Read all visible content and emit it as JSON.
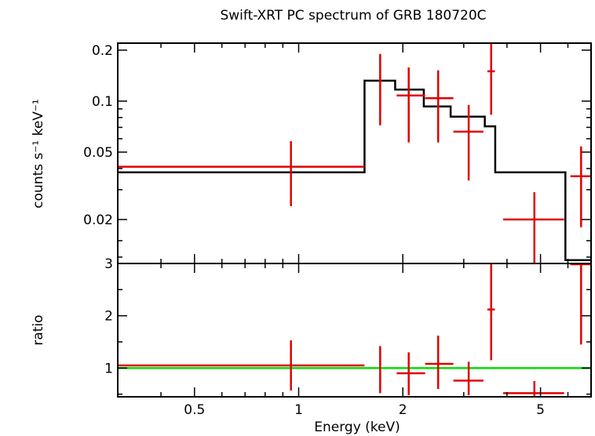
{
  "chart_data": [
    {
      "type": "scatter",
      "title": "Swift-XRT PC spectrum of GRB 180720C",
      "xlabel": "Energy (keV)",
      "ylabel": "counts s⁻¹ keV⁻¹",
      "xscale": "log",
      "yscale": "log",
      "xlim": [
        0.3,
        7.0
      ],
      "ylim": [
        0.011,
        0.22
      ],
      "yticks": [
        {
          "v": 0.2,
          "label": "0.2"
        },
        {
          "v": 0.1,
          "label": "0.1"
        },
        {
          "v": 0.05,
          "label": "0.05"
        },
        {
          "v": 0.02,
          "label": "0.02"
        }
      ],
      "colors": {
        "data": "#e00000",
        "model": "#000000"
      },
      "series": [
        {
          "kind": "data",
          "points": [
            {
              "x": 0.95,
              "xlo": 0.3,
              "xhi": 1.55,
              "y": 0.041,
              "ylo": 0.024,
              "yhi": 0.058
            },
            {
              "x": 1.72,
              "xlo": 1.72,
              "xhi": 1.72,
              "y": 0.11,
              "ylo": 0.072,
              "yhi": 0.19
            },
            {
              "x": 2.08,
              "xlo": 1.92,
              "xhi": 2.32,
              "y": 0.108,
              "ylo": 0.057,
              "yhi": 0.158
            },
            {
              "x": 2.53,
              "xlo": 2.32,
              "xhi": 2.8,
              "y": 0.104,
              "ylo": 0.057,
              "yhi": 0.152
            },
            {
              "x": 3.1,
              "xlo": 2.8,
              "xhi": 3.42,
              "y": 0.066,
              "ylo": 0.034,
              "yhi": 0.095
            },
            {
              "x": 3.6,
              "xlo": 3.51,
              "xhi": 3.69,
              "y": 0.15,
              "ylo": 0.083,
              "yhi": 0.22
            },
            {
              "x": 4.8,
              "xlo": 3.9,
              "xhi": 5.85,
              "y": 0.02,
              "ylo": 0.011,
              "yhi": 0.029
            },
            {
              "x": 6.55,
              "xlo": 6.1,
              "xhi": 7.0,
              "y": 0.036,
              "ylo": 0.018,
              "yhi": 0.054
            }
          ]
        },
        {
          "kind": "model",
          "steps": [
            {
              "x0": 0.3,
              "x1": 1.55,
              "y": 0.038
            },
            {
              "x0": 1.55,
              "x1": 1.9,
              "y": 0.132
            },
            {
              "x0": 1.9,
              "x1": 2.3,
              "y": 0.117
            },
            {
              "x0": 2.3,
              "x1": 2.75,
              "y": 0.093
            },
            {
              "x0": 2.75,
              "x1": 3.45,
              "y": 0.081
            },
            {
              "x0": 3.45,
              "x1": 3.7,
              "y": 0.071
            },
            {
              "x0": 3.7,
              "x1": 5.9,
              "y": 0.038
            },
            {
              "x0": 5.9,
              "x1": 7.0,
              "y": 0.0115
            }
          ]
        }
      ]
    },
    {
      "type": "scatter",
      "xlabel": "Energy (keV)",
      "ylabel": "ratio",
      "xscale": "log",
      "xlim": [
        0.3,
        7.0
      ],
      "ylim": [
        0.45,
        3.0
      ],
      "xticks": [
        {
          "v": 0.5,
          "label": "0.5"
        },
        {
          "v": 1,
          "label": "1"
        },
        {
          "v": 2,
          "label": "2"
        },
        {
          "v": 5,
          "label": "5"
        }
      ],
      "yticks": [
        {
          "v": 3,
          "label": "3"
        },
        {
          "v": 2,
          "label": "2"
        },
        {
          "v": 1,
          "label": "1"
        }
      ],
      "reference_line": {
        "y": 1,
        "color": "#00e000"
      },
      "colors": {
        "data": "#e00000"
      },
      "series": [
        {
          "kind": "data",
          "points": [
            {
              "x": 0.95,
              "xlo": 0.3,
              "xhi": 1.55,
              "y": 1.05,
              "ylo": 0.57,
              "yhi": 1.53
            },
            {
              "x": 1.72,
              "xlo": 1.72,
              "xhi": 1.72,
              "y": 0.95,
              "ylo": 0.52,
              "yhi": 1.42
            },
            {
              "x": 2.08,
              "xlo": 1.92,
              "xhi": 2.32,
              "y": 0.9,
              "ylo": 0.48,
              "yhi": 1.3
            },
            {
              "x": 2.53,
              "xlo": 2.32,
              "xhi": 2.8,
              "y": 1.08,
              "ylo": 0.6,
              "yhi": 1.62
            },
            {
              "x": 3.1,
              "xlo": 2.8,
              "xhi": 3.42,
              "y": 0.76,
              "ylo": 0.48,
              "yhi": 1.12
            },
            {
              "x": 3.6,
              "xlo": 3.51,
              "xhi": 3.69,
              "y": 2.12,
              "ylo": 1.15,
              "yhi": 3.0
            },
            {
              "x": 4.8,
              "xlo": 3.9,
              "xhi": 5.85,
              "y": 0.52,
              "ylo": 0.45,
              "yhi": 0.75
            },
            {
              "x": 6.55,
              "xlo": 6.1,
              "xhi": 7.0,
              "y": 3.0,
              "ylo": 1.45,
              "yhi": 3.0
            }
          ]
        }
      ]
    }
  ]
}
